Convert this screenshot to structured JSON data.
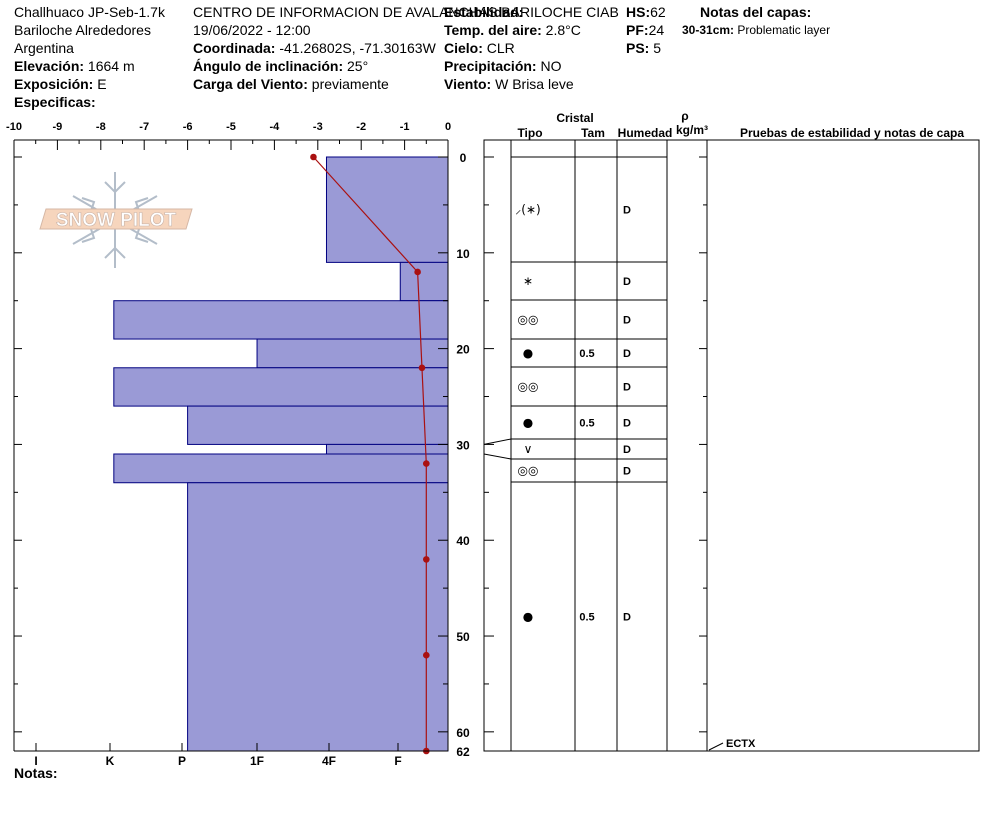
{
  "header": {
    "col1": {
      "line1": "Challhuaco JP-Seb-1.7k",
      "line2": "Bariloche Alrededores",
      "line3": "Argentina",
      "elev_label": "Elevación:",
      "elev_value": "1664 m",
      "expo_label": "Exposición:",
      "expo_value": "E",
      "spec_label": "Especificas:"
    },
    "col2": {
      "line1": "CENTRO DE INFORMACION DE AVALANCHAS BARILOCHE CIAB",
      "line2": "19/06/2022 - 12:00",
      "coord_label": "Coordinada:",
      "coord_value": "-41.26802S, -71.30163W",
      "angle_label": "Ángulo de inclinación:",
      "angle_value": "25°",
      "wind_load_label": "Carga del Viento:",
      "wind_load_value": "previamente"
    },
    "col3": {
      "stability_label": "Estabilidad:",
      "air_temp_label": "Temp. del aire:",
      "air_temp_value": "2.8°C",
      "sky_label": "Cielo:",
      "sky_value": "CLR",
      "precip_label": "Precipitación:",
      "precip_value": "NO",
      "wind_label": "Viento:",
      "wind_value": "W Brisa leve"
    },
    "col4": {
      "hs_label": "HS:",
      "hs_value": "62",
      "pf_label": "PF:",
      "pf_value": "24",
      "ps_label": "PS:",
      "ps_value": "5"
    },
    "notes_title": "Notas del capas:",
    "layer_note_range": "30-31cm:",
    "layer_note_text": "Problematic layer"
  },
  "logo_text": "SNOW PILOT",
  "temp_ticks": [
    "-10",
    "-9",
    "-8",
    "-7",
    "-6",
    "-5",
    "-4",
    "-3",
    "-2",
    "-1",
    "0"
  ],
  "hardness_ticks": [
    "I",
    "K",
    "P",
    "1F",
    "4F",
    "F"
  ],
  "depth_ticks": [
    "0",
    "10",
    "20",
    "30",
    "40",
    "50",
    "60",
    "62"
  ],
  "footer_label": "Notas:",
  "table_headers": {
    "cristal": "Cristal",
    "tipo": "Tipo",
    "tam": "Tam",
    "humedad": "Humedad",
    "rho": "ρ",
    "density_unit": "kg/m³",
    "pruebas": "Pruebas de estabilidad y notas de capa"
  },
  "test_note": "ECTX",
  "colors": {
    "bar": "#9a9ad6",
    "bar_stroke": "#000080",
    "temp": "#aa1111"
  },
  "chart_data": {
    "type": "snow_profile",
    "depth_max": 62,
    "temp_range": [
      -10,
      0
    ],
    "hardness_scale": [
      "F",
      "4F",
      "1F",
      "P",
      "K",
      "I"
    ],
    "layers": [
      {
        "top": 0,
        "bottom": 11,
        "hardness": "4F",
        "hardness_value": 2.8,
        "grain": "⸝(∗)",
        "size": "",
        "moisture": "D"
      },
      {
        "top": 11,
        "bottom": 15,
        "hardness": "F+",
        "hardness_value": 1.1,
        "grain": "∗",
        "size": "",
        "moisture": "D"
      },
      {
        "top": 15,
        "bottom": 19,
        "hardness": "K-",
        "hardness_value": 7.7,
        "grain": "◎◎",
        "size": "",
        "moisture": "D"
      },
      {
        "top": 19,
        "bottom": 22,
        "hardness": "1F+",
        "hardness_value": 4.4,
        "grain": "●",
        "size": "0.5",
        "moisture": "D"
      },
      {
        "top": 22,
        "bottom": 26,
        "hardness": "K-",
        "hardness_value": 7.7,
        "grain": "◎◎",
        "size": "",
        "moisture": "D"
      },
      {
        "top": 26,
        "bottom": 30,
        "hardness": "P",
        "hardness_value": 6.0,
        "grain": "●",
        "size": "0.5",
        "moisture": "D"
      },
      {
        "top": 30,
        "bottom": 31,
        "hardness": "4F",
        "hardness_value": 2.8,
        "grain": "∨",
        "size": "",
        "moisture": "D"
      },
      {
        "top": 31,
        "bottom": 34,
        "hardness": "K-",
        "hardness_value": 7.7,
        "grain": "◎◎",
        "size": "",
        "moisture": "D"
      },
      {
        "top": 34,
        "bottom": 62,
        "hardness": "P",
        "hardness_value": 6.0,
        "grain": "●",
        "size": "0.5",
        "moisture": "D"
      }
    ],
    "temperature_profile": [
      {
        "depth": 0,
        "temp": -3.1
      },
      {
        "depth": 12,
        "temp": -0.7
      },
      {
        "depth": 22,
        "temp": -0.6
      },
      {
        "depth": 32,
        "temp": -0.5
      },
      {
        "depth": 42,
        "temp": -0.5
      },
      {
        "depth": 52,
        "temp": -0.5
      },
      {
        "depth": 62,
        "temp": -0.5
      }
    ],
    "tests": [
      {
        "depth": 62,
        "result": "ECTX"
      }
    ]
  }
}
